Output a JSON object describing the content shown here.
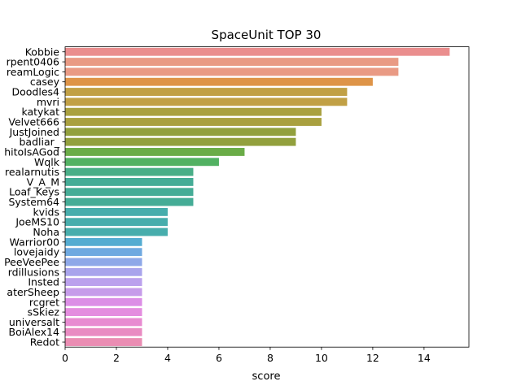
{
  "chart_data": {
    "type": "bar",
    "orientation": "horizontal",
    "title": "SpaceUnit TOP 30",
    "xlabel": "score",
    "ylabel": "",
    "xlim": [
      0,
      15.75
    ],
    "xticks": [
      0,
      2,
      4,
      6,
      8,
      10,
      12,
      14
    ],
    "grid": false,
    "categories": [
      "Kobbie",
      "rpent0406",
      "reamLogic",
      "casey",
      "Doodles4",
      "mvri",
      "katykat",
      "Velvet666",
      "JustJoined",
      "badliar_",
      "hitoIsAGod",
      "Wqlk",
      "realarnutis",
      "V_A_M",
      "Loaf_Keys",
      "System64",
      "kvids",
      "JoeMS10",
      "Noha",
      "Warrior00",
      "lovejaidy",
      "PeeVeePee",
      "rdillusions",
      "Insted",
      "aterSheep",
      "rcgret",
      "sSkiez",
      "universalt",
      "BoiAlex14",
      "Redot"
    ],
    "values": [
      15,
      13,
      13,
      12,
      11,
      11,
      10,
      10,
      9,
      9,
      7,
      6,
      5,
      5,
      5,
      5,
      4,
      4,
      4,
      3,
      3,
      3,
      3,
      3,
      3,
      3,
      3,
      3,
      3,
      3
    ],
    "colors": [
      "#ea8e8e",
      "#e99a84",
      "#e99a84",
      "#de9448",
      "#c1a045",
      "#c1a045",
      "#a9a03f",
      "#a9a03f",
      "#92a03d",
      "#92a03d",
      "#6aac47",
      "#52b162",
      "#49ae87",
      "#45ac96",
      "#45ac96",
      "#45ac96",
      "#47adac",
      "#47adac",
      "#47adac",
      "#54acd1",
      "#6fa9e0",
      "#8ea8e8",
      "#a9a4ec",
      "#bba1ed",
      "#c69cea",
      "#dc8ee6",
      "#e48ddf",
      "#e88bd1",
      "#e98bc2",
      "#ea8db3"
    ]
  }
}
